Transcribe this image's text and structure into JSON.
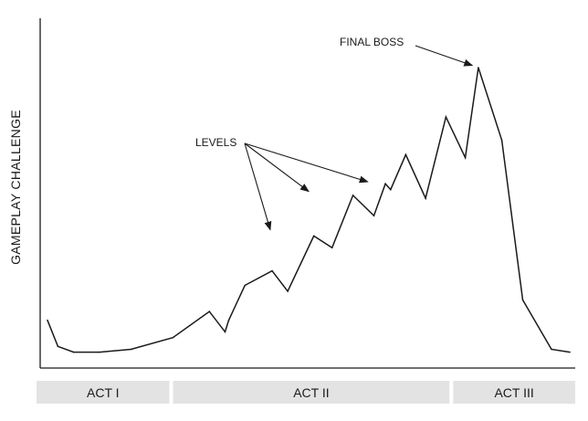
{
  "chart_data": {
    "type": "line",
    "ylabel": "GAMEPLAY CHALLENGE",
    "xlabel": "",
    "grid": false,
    "xlim": [
      0,
      100
    ],
    "ylim": [
      0,
      100
    ],
    "series": [
      {
        "x": [
          0,
          2,
          5,
          10,
          16,
          24,
          31,
          34,
          34.7,
          37.8,
          43,
          46,
          51,
          54.5,
          58.5,
          62.5,
          64.7,
          65.7,
          68.6,
          72.4,
          76.3,
          80.0,
          82.5,
          87,
          91,
          96.5,
          100
        ],
        "values": [
          13,
          4,
          2,
          2,
          3,
          7,
          16,
          9,
          13,
          25,
          30,
          23,
          42,
          38,
          56,
          49,
          60,
          58,
          70,
          55,
          83,
          69,
          100,
          75,
          20,
          3,
          2
        ]
      }
    ],
    "annotations": [
      {
        "text": "LEVELS",
        "points_at": [
          [
            43,
            42
          ],
          [
            51,
            56
          ],
          [
            62.5,
            60
          ]
        ]
      },
      {
        "text": "FINAL BOSS",
        "points_at": [
          [
            82.5,
            100
          ]
        ]
      }
    ],
    "acts": [
      {
        "label": "ACT I",
        "from": 0,
        "to": 25
      },
      {
        "label": "ACT II",
        "from": 25,
        "to": 77
      },
      {
        "label": "ACT III",
        "from": 77,
        "to": 100
      }
    ],
    "colors": {
      "line": "#1a1a1a",
      "act_bar": "#e3e3e3",
      "axis": "#1a1a1a"
    }
  }
}
